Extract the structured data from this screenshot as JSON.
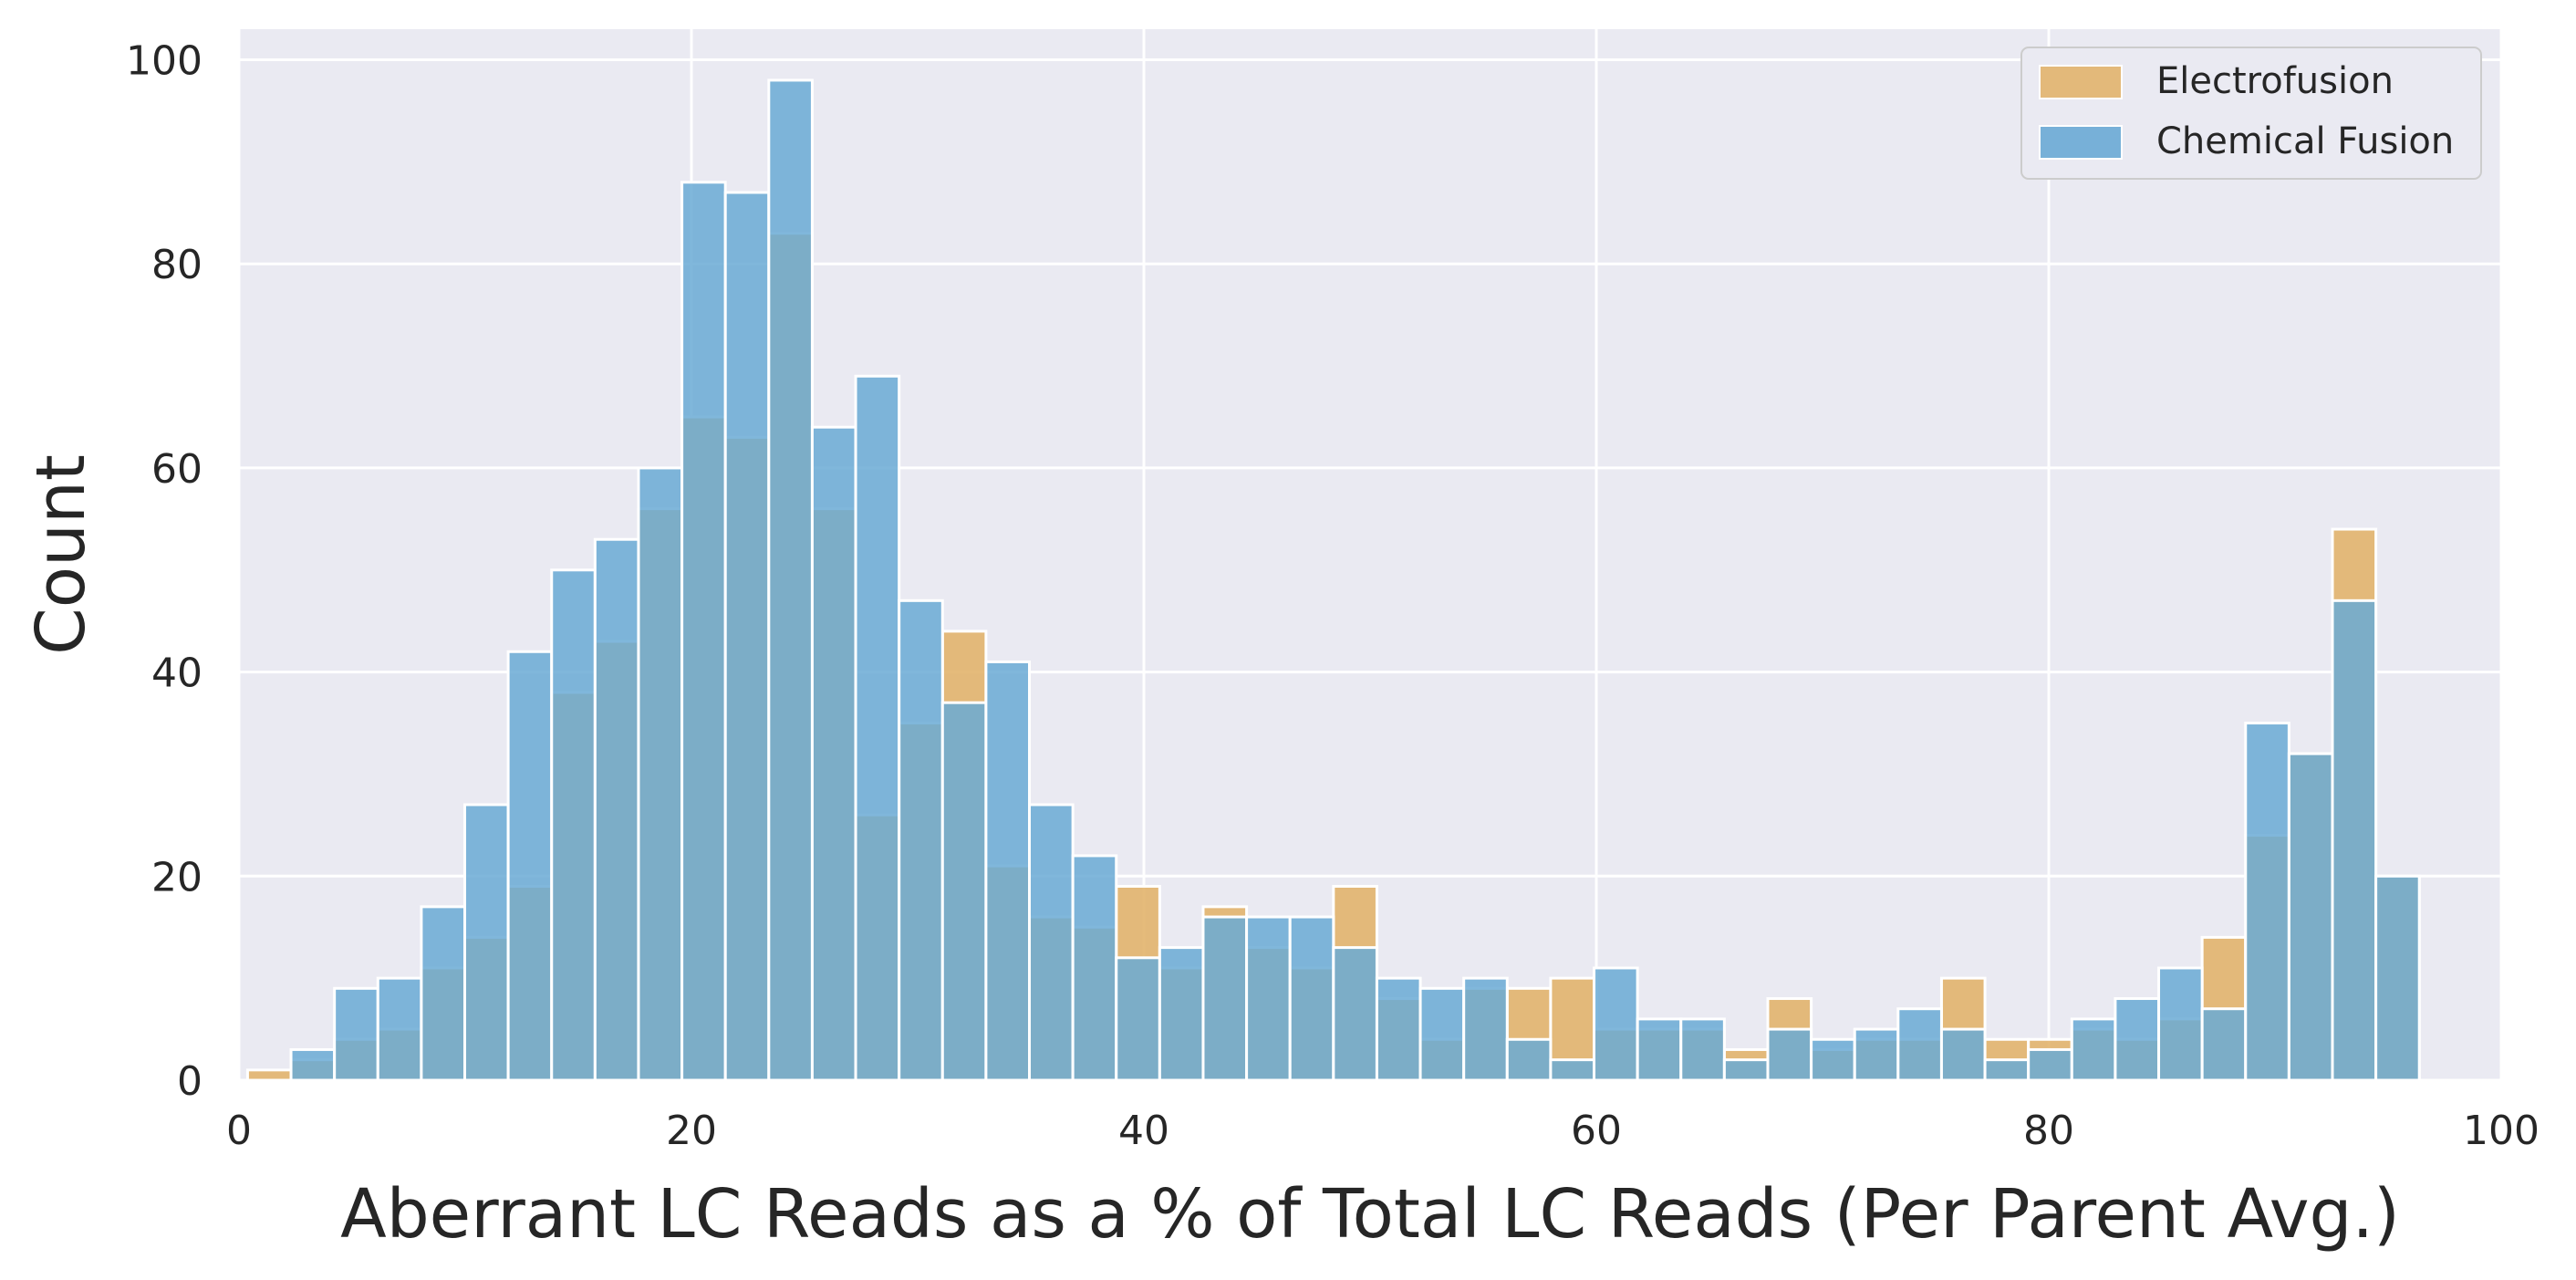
{
  "chart_data": {
    "type": "bar",
    "subtype": "overlaid-histogram",
    "title": "",
    "xlabel": "Aberrant LC Reads as a % of Total LC Reads (Per Parent Avg.)",
    "ylabel": "Count",
    "xlim": [
      0,
      100
    ],
    "ylim": [
      0,
      103
    ],
    "xticks": [
      0,
      20,
      40,
      60,
      80,
      100
    ],
    "yticks": [
      0,
      20,
      40,
      60,
      80,
      100
    ],
    "grid": true,
    "background": "#eaeaf2",
    "legend_position": "top-right",
    "bin_width": 1.92,
    "bin_start": 0.38,
    "series": [
      {
        "name": "Electrofusion",
        "color": "#e2b46d",
        "values": [
          1,
          2,
          4,
          5,
          11,
          14,
          19,
          38,
          43,
          56,
          65,
          63,
          83,
          56,
          26,
          35,
          44,
          21,
          16,
          15,
          19,
          11,
          17,
          13,
          11,
          19,
          8,
          4,
          9,
          9,
          10,
          5,
          5,
          5,
          3,
          8,
          3,
          4,
          4,
          10,
          4,
          4,
          5,
          4,
          6,
          14,
          24,
          32,
          54,
          20
        ]
      },
      {
        "name": "Chemical Fusion",
        "color": "#6aaad5",
        "values": [
          0,
          3,
          9,
          10,
          17,
          27,
          42,
          50,
          53,
          60,
          88,
          87,
          98,
          64,
          69,
          47,
          37,
          41,
          27,
          22,
          12,
          13,
          16,
          16,
          16,
          13,
          10,
          9,
          10,
          4,
          2,
          11,
          6,
          6,
          2,
          5,
          4,
          5,
          7,
          5,
          2,
          3,
          6,
          8,
          11,
          7,
          35,
          32,
          47,
          20
        ]
      }
    ]
  }
}
